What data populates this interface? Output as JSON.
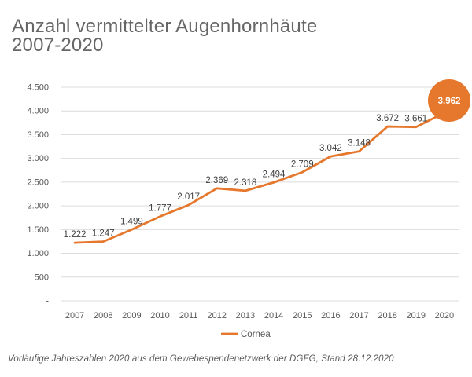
{
  "slide": {
    "title": "Anzahl vermittelter Augenhornhäute\n2007-2020",
    "footnote": "Vorläufige Jahreszahlen 2020 aus dem Gewebespendenetzwerk der DGFG, Stand 28.12.2020"
  },
  "colors": {
    "accent": "#E5782D",
    "gridline": "#DCDCDC",
    "axis_text": "#595959",
    "label_text": "#404040",
    "title_text": "#666666",
    "highlight_text": "#FFFFFF"
  },
  "chart_data": {
    "type": "line",
    "title": "Anzahl vermittelter Augenhornhäute 2007-2020",
    "categories": [
      "2007",
      "2008",
      "2009",
      "2010",
      "2011",
      "2012",
      "2013",
      "2014",
      "2015",
      "2016",
      "2017",
      "2018",
      "2019",
      "2020"
    ],
    "series": [
      {
        "name": "Cornea",
        "values": [
          1222,
          1247,
          1499,
          1777,
          2017,
          2369,
          2318,
          2494,
          2709,
          3042,
          3148,
          3672,
          3661,
          3962
        ]
      }
    ],
    "data_labels": [
      "1.222",
      "1.247",
      "1.499",
      "1.777",
      "2.017",
      "2.369",
      "2.318",
      "2.494",
      "2.709",
      "3.042",
      "3.148",
      "3.672",
      "3.661",
      "3.962"
    ],
    "ylim": [
      0,
      4500
    ],
    "ytick_step": 500,
    "ytick_labels": [
      "-",
      "500",
      "1.000",
      "1.500",
      "2.000",
      "2.500",
      "3.000",
      "3.500",
      "4.000",
      "4.500"
    ],
    "grid": true,
    "legend_position": "bottom",
    "legend_label": "Cornea",
    "highlight_last_point": true,
    "highlight_label": "3.962"
  }
}
